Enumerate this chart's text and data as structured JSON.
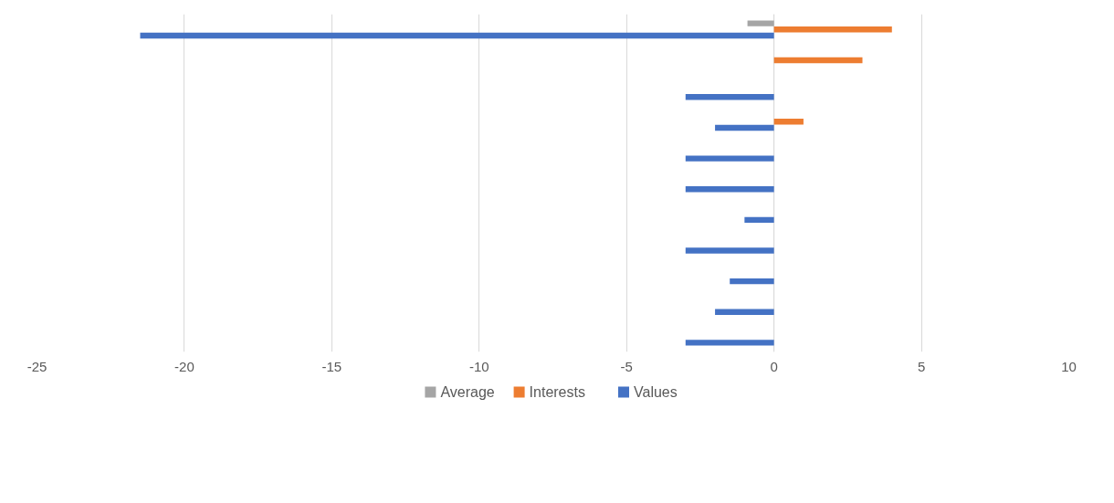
{
  "chart_data": {
    "type": "bar",
    "orientation": "horizontal",
    "categories": [
      null,
      null,
      null,
      null,
      null,
      null,
      null,
      null,
      null,
      null,
      null
    ],
    "series": [
      {
        "name": "Average",
        "color": "#a5a5a5",
        "values": [
          -0.9,
          null,
          null,
          null,
          null,
          null,
          null,
          null,
          null,
          null,
          null
        ]
      },
      {
        "name": "Interests",
        "color": "#ed7d31",
        "values": [
          4,
          3,
          null,
          1,
          null,
          null,
          null,
          null,
          null,
          null,
          null
        ]
      },
      {
        "name": "Values",
        "color": "#4472c4",
        "values": [
          -21.5,
          null,
          -3,
          -2,
          -3,
          -3,
          -1,
          -3,
          -1.5,
          -2,
          -3
        ]
      }
    ],
    "xlim": [
      -25,
      10
    ],
    "xticks": [
      -25,
      -20,
      -15,
      -10,
      -5,
      0,
      5,
      10
    ],
    "grid": "x",
    "legend": "bottom"
  }
}
